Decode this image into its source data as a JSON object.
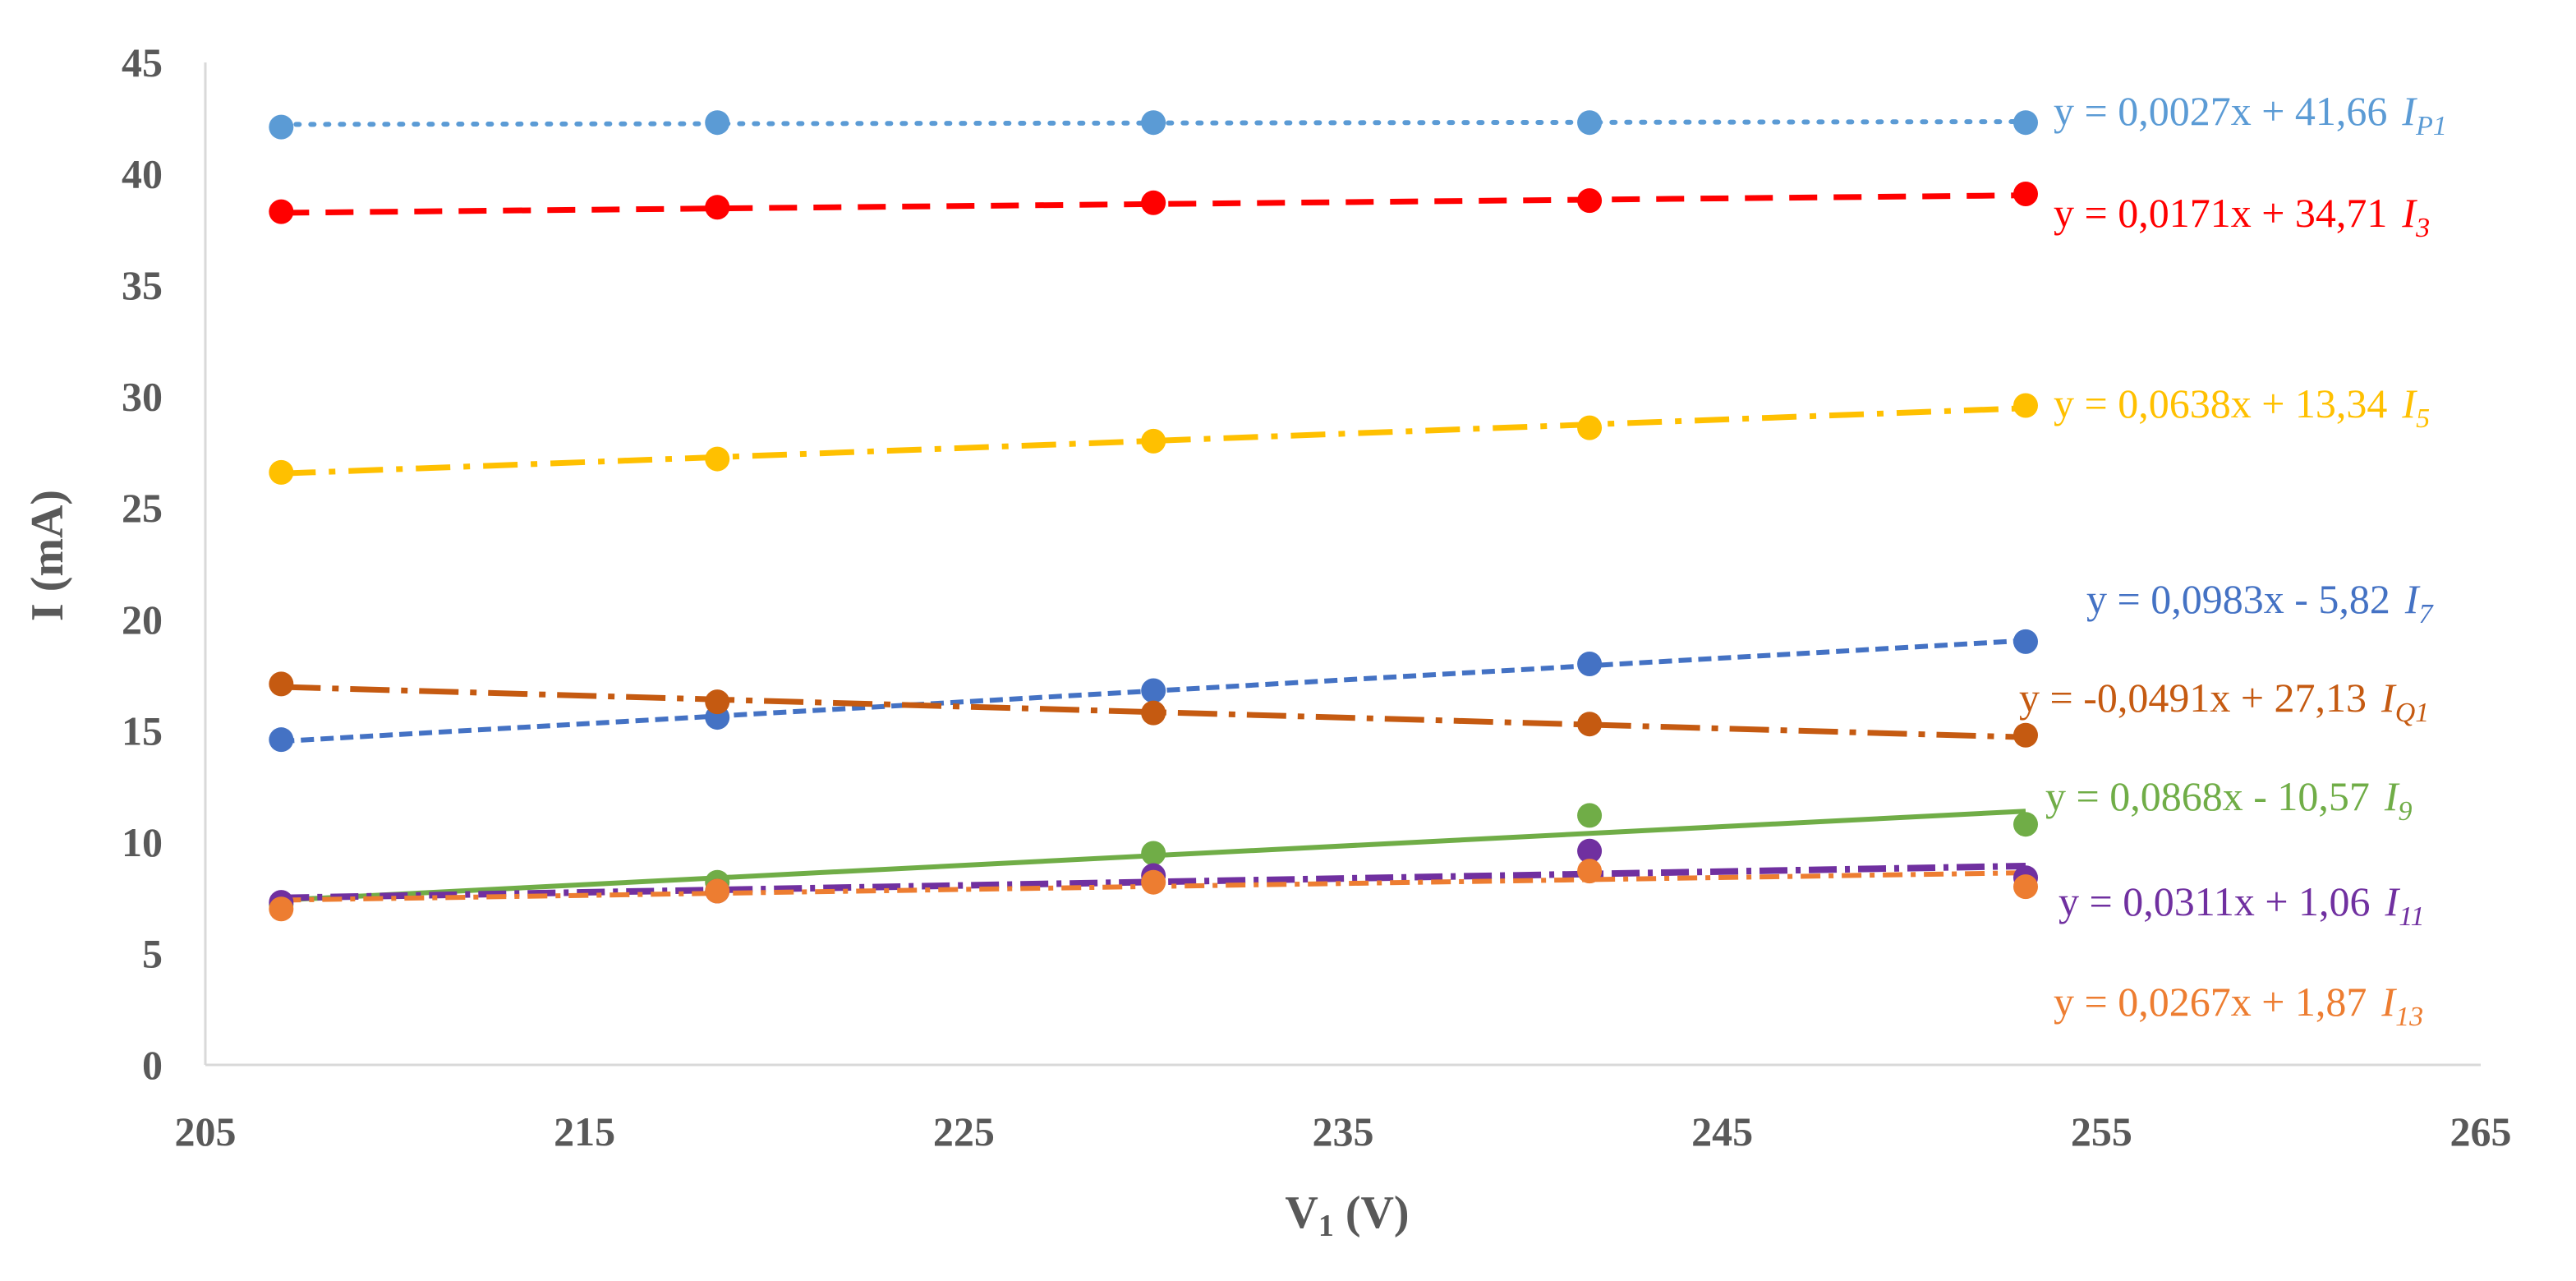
{
  "chart_data": {
    "type": "scatter",
    "xlabel_main": "V",
    "xlabel_sub": "1",
    "xlabel_unit": " (V)",
    "ylabel": "I (mA)",
    "xlim": [
      205,
      265
    ],
    "ylim": [
      0,
      45
    ],
    "xticks": [
      205,
      215,
      225,
      235,
      245,
      255,
      265
    ],
    "yticks": [
      0,
      5,
      10,
      15,
      20,
      25,
      30,
      35,
      40,
      45
    ],
    "x": [
      207,
      218.5,
      230,
      241.5,
      253
    ],
    "series": [
      {
        "key": "ip1",
        "symbol": "I",
        "sub": "P1",
        "equation": "y = 0,0027x + 41,66",
        "slope": 0.0027,
        "intercept": 41.66,
        "color": "#5b9bd5",
        "dash": "4 14",
        "width": 6,
        "values": [
          42.1,
          42.3,
          42.3,
          42.3,
          42.3
        ]
      },
      {
        "key": "i3",
        "symbol": "I",
        "sub": "3",
        "equation": "y = 0,0171x + 34,71",
        "slope": 0.0171,
        "intercept": 34.71,
        "color": "#ff0000",
        "dash": "34 20",
        "width": 7,
        "values": [
          38.3,
          38.5,
          38.7,
          38.8,
          39.1
        ]
      },
      {
        "key": "i5",
        "symbol": "I",
        "sub": "5",
        "equation": "y = 0,0638x + 13,34",
        "slope": 0.0638,
        "intercept": 13.34,
        "color": "#ffc000",
        "dash": "42 16 8 16",
        "width": 7,
        "values": [
          26.6,
          27.2,
          28.0,
          28.6,
          29.6
        ]
      },
      {
        "key": "i7",
        "symbol": "I",
        "sub": "7",
        "equation": "y = 0,0983x - 5,82",
        "slope": 0.0983,
        "intercept": -5.82,
        "color": "#4472c4",
        "dash": "16 8",
        "width": 6,
        "values": [
          14.6,
          15.6,
          16.8,
          18.0,
          19.0
        ]
      },
      {
        "key": "iq1",
        "symbol": "I",
        "sub": "Q1",
        "equation": "y = -0,0491x + 27,13",
        "slope": -0.0491,
        "intercept": 27.13,
        "color": "#c55a11",
        "dash": "48 14 8 14",
        "width": 7,
        "values": [
          17.1,
          16.3,
          15.8,
          15.3,
          14.8
        ]
      },
      {
        "key": "i9",
        "symbol": "I",
        "sub": "9",
        "equation": "y = 0,0868x - 10,57",
        "slope": 0.0868,
        "intercept": -10.57,
        "color": "#70ad47",
        "dash": "",
        "width": 6,
        "values": [
          7.2,
          8.2,
          9.5,
          11.2,
          10.8
        ]
      },
      {
        "key": "i11",
        "symbol": "I",
        "sub": "11",
        "equation": "y = 0,0311x + 1,06",
        "slope": 0.0311,
        "intercept": 1.06,
        "color": "#7030a0",
        "dash": "34 10 6 10",
        "width": 8,
        "values": [
          7.3,
          7.8,
          8.5,
          9.6,
          8.4
        ]
      },
      {
        "key": "i13",
        "symbol": "I",
        "sub": "13",
        "equation": "y = 0,0267x + 1,87",
        "slope": 0.0267,
        "intercept": 1.87,
        "color": "#ed7d31",
        "dash": "24 10 6 10",
        "width": 6,
        "values": [
          7.0,
          7.8,
          8.2,
          8.7,
          8.0
        ]
      }
    ]
  }
}
